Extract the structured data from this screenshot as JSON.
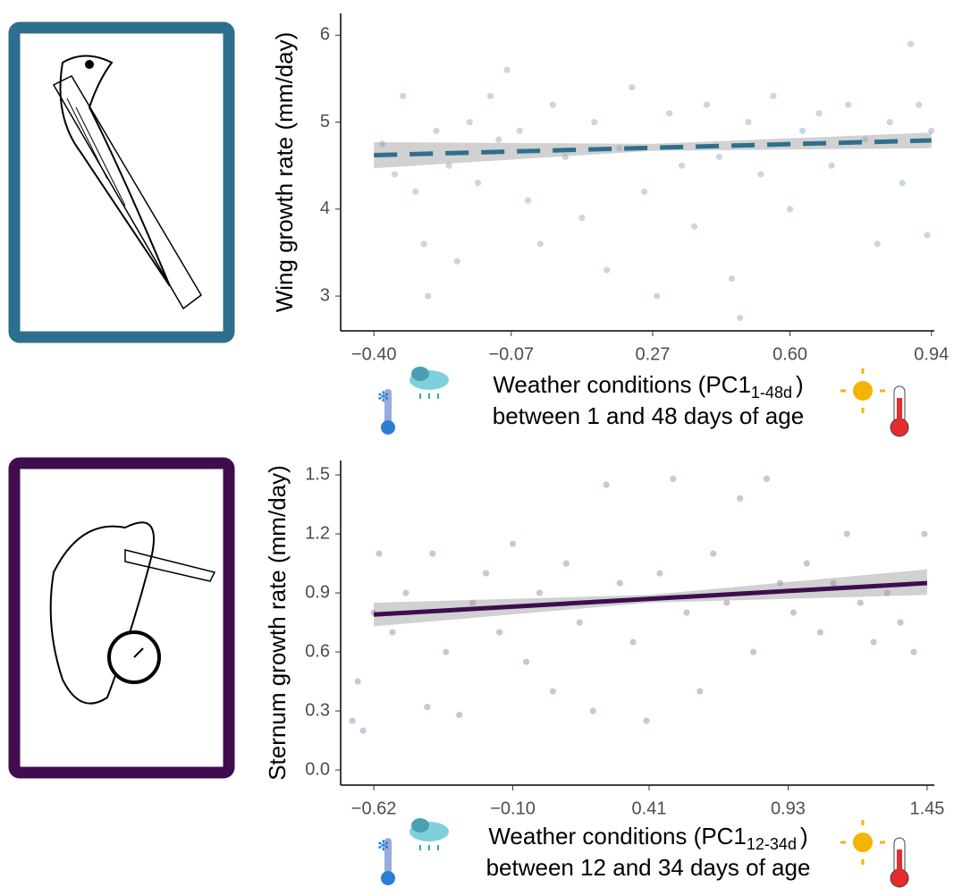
{
  "chart_data": [
    {
      "type": "scatter",
      "ylabel": "Wing growth rate (mm/day)",
      "xlabel": {
        "main": "Weather conditions (PC1",
        "sub": "1-48d",
        "close": ")",
        "line2": "between 1 and 48 days of age"
      },
      "color": "#2e6f8e",
      "point_color": "#5b8fab",
      "line_style": "dashed",
      "xlim": [
        -0.48,
        0.947
      ],
      "ylim": [
        2.6,
        6.25
      ],
      "xticks": [
        {
          "value": -0.4,
          "label": "−0.40"
        },
        {
          "value": -0.07,
          "label": "−0.07"
        },
        0.27,
        {
          "value": 0.6,
          "label": "0.60"
        },
        0.94
      ],
      "yticks": [
        3,
        4,
        5,
        6
      ],
      "x": [
        -0.38,
        -0.35,
        -0.33,
        -0.3,
        -0.28,
        -0.27,
        -0.25,
        -0.22,
        -0.2,
        -0.17,
        -0.15,
        -0.12,
        -0.1,
        -0.08,
        -0.05,
        -0.03,
        0.0,
        0.03,
        0.06,
        0.1,
        0.13,
        0.16,
        0.19,
        0.22,
        0.25,
        0.28,
        0.31,
        0.34,
        0.37,
        0.4,
        0.43,
        0.46,
        0.48,
        0.5,
        0.53,
        0.56,
        0.6,
        0.63,
        0.67,
        0.7,
        0.74,
        0.78,
        0.81,
        0.84,
        0.87,
        0.89,
        0.91,
        0.93,
        0.94
      ],
      "values": [
        4.75,
        4.4,
        5.3,
        4.2,
        3.6,
        3.0,
        4.9,
        4.5,
        3.4,
        5.0,
        4.3,
        5.3,
        4.8,
        5.6,
        4.9,
        4.1,
        3.6,
        5.2,
        4.6,
        3.9,
        5.0,
        3.3,
        4.7,
        5.4,
        4.2,
        3.0,
        5.1,
        4.5,
        3.8,
        5.2,
        4.6,
        3.2,
        2.75,
        5.0,
        4.4,
        5.3,
        4.0,
        4.9,
        5.1,
        4.5,
        5.2,
        4.8,
        3.6,
        5.0,
        4.3,
        5.9,
        5.2,
        3.7,
        4.9
      ],
      "fit": {
        "x": [
          -0.4,
          0.94
        ],
        "values": [
          4.62,
          4.79
        ]
      },
      "band": {
        "x": [
          -0.4,
          0.27,
          0.94
        ],
        "upper": [
          4.77,
          4.75,
          4.88
        ],
        "lower": [
          4.47,
          4.67,
          4.7
        ]
      }
    },
    {
      "type": "scatter",
      "ylabel": "Sternum growth rate (mm/day)",
      "xlabel": {
        "main": "Weather conditions (PC1",
        "sub": "12-34d",
        "close": ")",
        "line2": "between 12 and 34 days of age"
      },
      "color": "#3f0d4e",
      "point_color": "#7a4f8c",
      "line_style": "solid",
      "xlim": [
        -0.744,
        1.477
      ],
      "ylim": [
        -0.077,
        1.573
      ],
      "xticks": [
        {
          "value": -0.62,
          "label": "−0.62"
        },
        {
          "value": -0.1,
          "label": "−0.10"
        },
        0.41,
        0.93,
        1.45
      ],
      "yticks": [
        {
          "value": 0,
          "label": "0.0"
        },
        0.3,
        0.6,
        0.9,
        1.2,
        1.5
      ],
      "x": [
        -0.7,
        -0.68,
        -0.66,
        -0.62,
        -0.6,
        -0.55,
        -0.5,
        -0.42,
        -0.4,
        -0.35,
        -0.3,
        -0.25,
        -0.2,
        -0.15,
        -0.1,
        -0.05,
        0.0,
        0.05,
        0.1,
        0.15,
        0.2,
        0.25,
        0.3,
        0.35,
        0.4,
        0.45,
        0.5,
        0.55,
        0.6,
        0.65,
        0.7,
        0.75,
        0.8,
        0.85,
        0.9,
        0.95,
        1.0,
        1.05,
        1.1,
        1.15,
        1.2,
        1.25,
        1.3,
        1.35,
        1.4,
        1.44
      ],
      "values": [
        0.25,
        0.45,
        0.2,
        0.8,
        1.1,
        0.7,
        0.9,
        0.32,
        1.1,
        0.6,
        0.28,
        0.85,
        1.0,
        0.7,
        1.15,
        0.55,
        0.9,
        0.4,
        1.05,
        0.75,
        0.3,
        1.45,
        0.95,
        0.65,
        0.25,
        1.0,
        1.48,
        0.8,
        0.4,
        1.1,
        0.85,
        1.38,
        0.6,
        1.48,
        0.95,
        0.8,
        1.05,
        0.7,
        0.95,
        1.2,
        0.85,
        0.65,
        0.9,
        0.75,
        0.6,
        1.2
      ],
      "fit": {
        "x": [
          -0.62,
          1.45
        ],
        "values": [
          0.79,
          0.95
        ]
      },
      "band": {
        "x": [
          -0.62,
          0.41,
          1.45
        ],
        "upper": [
          0.85,
          0.89,
          1.02
        ],
        "lower": [
          0.73,
          0.85,
          0.89
        ]
      }
    }
  ]
}
